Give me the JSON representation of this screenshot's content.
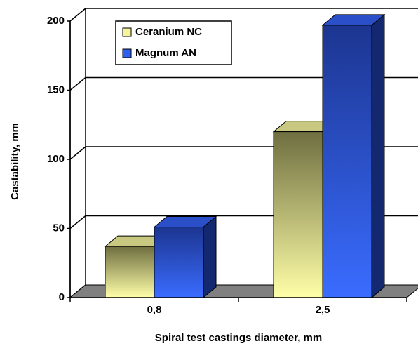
{
  "chart_data": {
    "type": "bar3d",
    "categories": [
      "0,8",
      "2,5"
    ],
    "series": [
      {
        "name": "Ceranium NC",
        "color": "#f4f49a",
        "values": [
          37,
          120
        ]
      },
      {
        "name": "Magnum AN",
        "color": "#2f5ff0",
        "values": [
          51,
          197
        ]
      }
    ],
    "ylim": [
      0,
      200
    ],
    "yticks": [
      0,
      50,
      100,
      150,
      200
    ],
    "grid": true,
    "y_label": "Castability, mm",
    "x_label": "Spiral test castings diameter, mm",
    "legend": "upper left"
  }
}
